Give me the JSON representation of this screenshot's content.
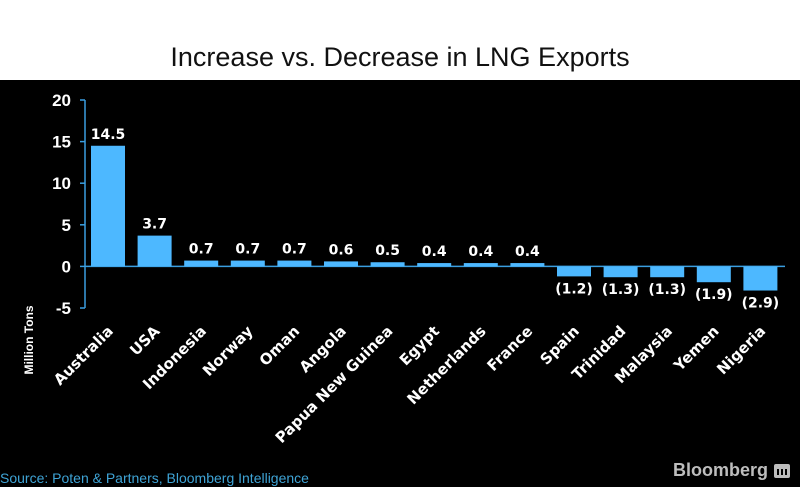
{
  "chart_data": {
    "type": "bar",
    "title": "Increase vs. Decrease in LNG Exports",
    "ylabel": "Million Tons",
    "xlabel": "",
    "ylim": [
      -5,
      20
    ],
    "yticks": [
      20,
      15,
      10,
      5,
      0,
      -5
    ],
    "categories": [
      "Australia",
      "USA",
      "Indonesia",
      "Norway",
      "Oman",
      "Angola",
      "Papua New Guinea",
      "Egypt",
      "Netherlands",
      "France",
      "Spain",
      "Trinidad",
      "Malaysia",
      "Yemen",
      "Nigeria"
    ],
    "values": [
      14.5,
      3.7,
      0.7,
      0.7,
      0.7,
      0.6,
      0.5,
      0.4,
      0.4,
      0.4,
      -1.2,
      -1.3,
      -1.3,
      -1.9,
      -2.9
    ],
    "data_labels": [
      "14.5",
      "3.7",
      "0.7",
      "0.7",
      "0.7",
      "0.6",
      "0.5",
      "0.4",
      "0.4",
      "0.4",
      "(1.2)",
      "(1.3)",
      "(1.3)",
      "(1.9)",
      "(2.9)"
    ],
    "grid": false,
    "legend": "none"
  },
  "footer": {
    "source": "Source: Poten & Partners, Bloomberg Intelligence",
    "brand": "Bloomberg"
  },
  "colors": {
    "bar": "#4db8ff",
    "axis": "#3a9ee0",
    "text": "#ffffff",
    "background": "#000000"
  }
}
